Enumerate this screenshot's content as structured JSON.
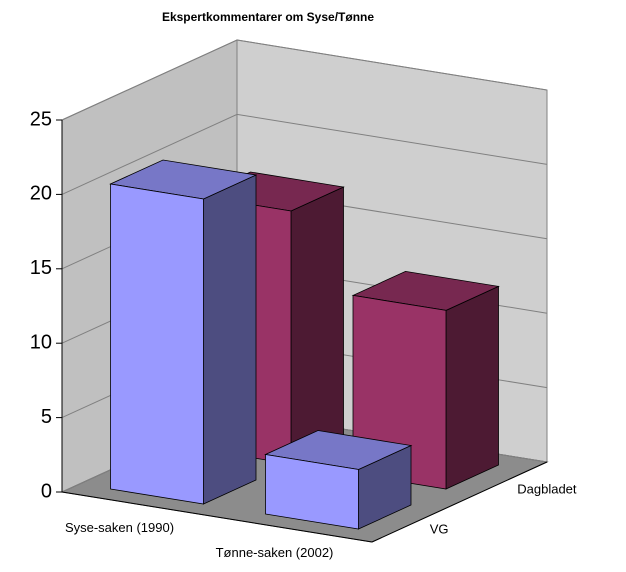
{
  "chart_data": {
    "type": "bar3d",
    "title": "Ekspertkommentarer om Syse/Tønne",
    "categories": [
      "Syse-saken (1990)",
      "Tønne-saken (2002)"
    ],
    "series": [
      {
        "name": "VG",
        "color": "#9999ff",
        "values": [
          20.5,
          4
        ]
      },
      {
        "name": "Dagbladet",
        "color": "#993366",
        "values": [
          17,
          12
        ]
      }
    ],
    "ylim": [
      0,
      25
    ],
    "yticks": [
      0,
      5,
      10,
      15,
      20,
      25
    ],
    "grid": true
  }
}
